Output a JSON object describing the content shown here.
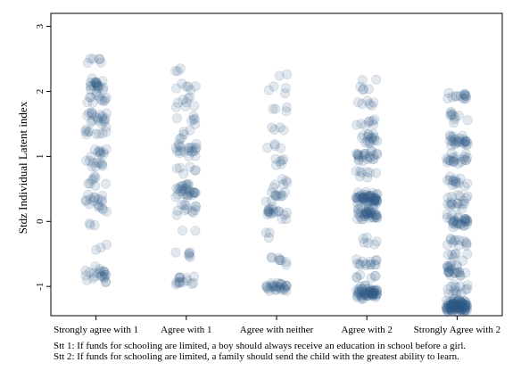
{
  "chart_data": {
    "type": "scatter",
    "title": "",
    "xlabel": "",
    "ylabel": "Stdz Individual Latent index",
    "categories": [
      "Strongly agree with 1",
      "Agree with 1",
      "Agree with neither",
      "Agree with 2",
      "Strongly Agree with 2"
    ],
    "yticks": [
      -1,
      0,
      1,
      2,
      3
    ],
    "ylim": [
      -1.45,
      3.2
    ],
    "jitter": true,
    "grid": false,
    "legend": "none",
    "marker_color": "#2f5b85",
    "marker_opacity": 0.14,
    "series": [
      {
        "category": "Strongly agree with 1",
        "clusters": [
          {
            "y": 2.45,
            "count": 6
          },
          {
            "y": 2.1,
            "count": 20
          },
          {
            "y": 1.9,
            "count": 12
          },
          {
            "y": 1.6,
            "count": 18
          },
          {
            "y": 1.35,
            "count": 10
          },
          {
            "y": 1.1,
            "count": 10
          },
          {
            "y": 0.9,
            "count": 10
          },
          {
            "y": 0.6,
            "count": 8
          },
          {
            "y": 0.35,
            "count": 12
          },
          {
            "y": 0.2,
            "count": 6
          },
          {
            "y": -0.05,
            "count": 3
          },
          {
            "y": -0.4,
            "count": 3
          },
          {
            "y": -0.8,
            "count": 14
          },
          {
            "y": -0.9,
            "count": 8
          }
        ]
      },
      {
        "category": "Agree with 1",
        "clusters": [
          {
            "y": 2.35,
            "count": 3
          },
          {
            "y": 2.1,
            "count": 6
          },
          {
            "y": 1.85,
            "count": 8
          },
          {
            "y": 1.6,
            "count": 6
          },
          {
            "y": 1.35,
            "count": 5
          },
          {
            "y": 1.1,
            "count": 20
          },
          {
            "y": 0.8,
            "count": 6
          },
          {
            "y": 0.55,
            "count": 6
          },
          {
            "y": 0.45,
            "count": 22
          },
          {
            "y": 0.2,
            "count": 12
          },
          {
            "y": -0.1,
            "count": 2
          },
          {
            "y": -0.5,
            "count": 6
          },
          {
            "y": -0.9,
            "count": 14
          }
        ]
      },
      {
        "category": "Agree with neither",
        "clusters": [
          {
            "y": 2.25,
            "count": 2
          },
          {
            "y": 2.0,
            "count": 4
          },
          {
            "y": 1.75,
            "count": 4
          },
          {
            "y": 1.45,
            "count": 4
          },
          {
            "y": 1.15,
            "count": 4
          },
          {
            "y": 0.9,
            "count": 6
          },
          {
            "y": 0.6,
            "count": 5
          },
          {
            "y": 0.4,
            "count": 12
          },
          {
            "y": 0.15,
            "count": 18
          },
          {
            "y": -0.25,
            "count": 3
          },
          {
            "y": -0.6,
            "count": 8
          },
          {
            "y": -1.0,
            "count": 28
          }
        ]
      },
      {
        "category": "Agree with 2",
        "clusters": [
          {
            "y": 2.1,
            "count": 6
          },
          {
            "y": 1.8,
            "count": 6
          },
          {
            "y": 1.5,
            "count": 8
          },
          {
            "y": 1.3,
            "count": 16
          },
          {
            "y": 1.0,
            "count": 22
          },
          {
            "y": 0.75,
            "count": 8
          },
          {
            "y": 0.35,
            "count": 55
          },
          {
            "y": 0.1,
            "count": 40
          },
          {
            "y": -0.3,
            "count": 6
          },
          {
            "y": -0.65,
            "count": 14
          },
          {
            "y": -0.85,
            "count": 6
          },
          {
            "y": -1.1,
            "count": 60
          }
        ]
      },
      {
        "category": "Strongly Agree with 2",
        "clusters": [
          {
            "y": 1.95,
            "count": 14
          },
          {
            "y": 1.6,
            "count": 10
          },
          {
            "y": 1.25,
            "count": 26
          },
          {
            "y": 0.95,
            "count": 20
          },
          {
            "y": 0.6,
            "count": 14
          },
          {
            "y": 0.3,
            "count": 18
          },
          {
            "y": 0.0,
            "count": 30
          },
          {
            "y": -0.3,
            "count": 12
          },
          {
            "y": -0.55,
            "count": 8
          },
          {
            "y": -0.75,
            "count": 22
          },
          {
            "y": -1.05,
            "count": 14
          },
          {
            "y": -1.3,
            "count": 110
          }
        ]
      }
    ]
  },
  "notes": {
    "stt1": "Stt 1: If funds for schooling are limited, a boy should always receive an education in school before a girl.",
    "stt2": "Stt 2: If funds for schooling are limited, a family should send the child with the greatest ability to learn."
  }
}
